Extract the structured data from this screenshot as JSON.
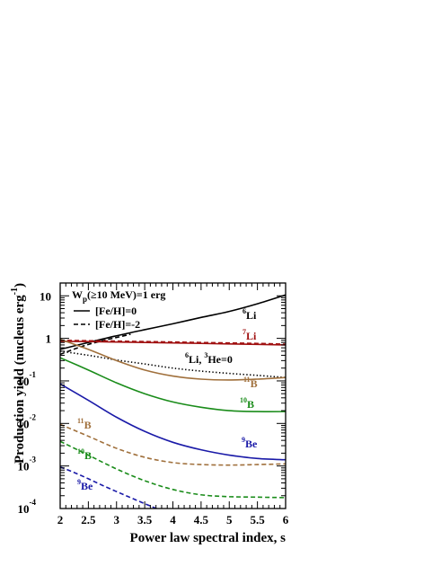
{
  "chart_data": {
    "type": "line",
    "title": "",
    "xlabel": "Power law spectral index, s",
    "ylabel": "Production yield (nucleus erg",
    "ylabel_sup": "-1",
    "ylabel_tail": ")",
    "xlim": [
      2,
      6
    ],
    "ylim": [
      0.0001,
      20
    ],
    "yscale": "log",
    "grid": false,
    "x_ticks": [
      "2",
      "2.5",
      "3",
      "3.5",
      "4",
      "4.5",
      "5",
      "5.5",
      "6"
    ],
    "y_ticks": [
      {
        "main": "10",
        "sup": "-4",
        "value": 0.0001
      },
      {
        "main": "10",
        "sup": "-3",
        "value": 0.001
      },
      {
        "main": "10",
        "sup": "-2",
        "value": 0.01
      },
      {
        "main": "10",
        "sup": "-1",
        "value": 0.1
      },
      {
        "main": "1",
        "sup": "",
        "value": 1
      },
      {
        "main": "10",
        "sup": "",
        "value": 10
      }
    ],
    "annotations": {
      "energy": {
        "prefix": "W",
        "sub": "p",
        "rest": "(≥10 MeV)=1 erg"
      },
      "legend_solid": "[Fe/H]=0",
      "legend_dashed": "[Fe/H]=-2"
    },
    "series": [
      {
        "id": "li6-solid",
        "color": "#000000",
        "style": "solid",
        "label": {
          "sup": "6",
          "text": "Li"
        },
        "x": [
          2,
          2.5,
          3,
          3.5,
          4,
          4.5,
          5,
          5.5,
          6
        ],
        "y": [
          0.55,
          0.8,
          1.15,
          1.6,
          2.2,
          3.1,
          4.3,
          6.5,
          10.5
        ]
      },
      {
        "id": "li6-dashed",
        "color": "#000000",
        "style": "dashed",
        "x": [
          2,
          2.25,
          2.5,
          2.75,
          3,
          3.25
        ],
        "y": [
          0.42,
          0.56,
          0.72,
          0.88,
          1.05,
          1.25
        ]
      },
      {
        "id": "li7-solid",
        "color": "#a01010",
        "style": "solid",
        "label": {
          "sup": "7",
          "text": "Li"
        },
        "x": [
          2,
          2.5,
          3,
          3.5,
          4,
          4.5,
          5,
          5.5,
          6
        ],
        "y": [
          0.85,
          0.84,
          0.82,
          0.8,
          0.78,
          0.76,
          0.74,
          0.72,
          0.7
        ]
      },
      {
        "id": "li7-dashed",
        "color": "#a01010",
        "style": "dashed",
        "x": [
          2,
          2.5,
          3,
          3.5,
          4,
          4.5,
          5,
          5.5,
          6
        ],
        "y": [
          0.9,
          0.88,
          0.86,
          0.84,
          0.82,
          0.8,
          0.78,
          0.76,
          0.73
        ]
      },
      {
        "id": "li6-he3-dotted",
        "color": "#000000",
        "style": "dotted",
        "label": {
          "sup": "6",
          "text": "Li, ",
          "sup2": "3",
          "text2": "He=0"
        },
        "x": [
          2,
          2.5,
          3,
          3.5,
          4,
          4.5,
          5,
          5.5,
          6
        ],
        "y": [
          0.5,
          0.4,
          0.31,
          0.25,
          0.2,
          0.17,
          0.15,
          0.135,
          0.12
        ]
      },
      {
        "id": "b11-solid",
        "color": "#a0703c",
        "style": "solid",
        "label": {
          "sup": "11",
          "text": "B"
        },
        "x": [
          2,
          2.5,
          3,
          3.5,
          4,
          4.5,
          5,
          5.5,
          6
        ],
        "y": [
          0.95,
          0.55,
          0.3,
          0.18,
          0.13,
          0.11,
          0.105,
          0.11,
          0.12
        ]
      },
      {
        "id": "b10-solid",
        "color": "#1a8c1a",
        "style": "solid",
        "label": {
          "sup": "10",
          "text": "B"
        },
        "x": [
          2,
          2.5,
          3,
          3.5,
          4,
          4.5,
          5,
          5.5,
          6
        ],
        "y": [
          0.35,
          0.18,
          0.09,
          0.05,
          0.032,
          0.024,
          0.02,
          0.019,
          0.019
        ]
      },
      {
        "id": "be9-solid",
        "color": "#1a1aa8",
        "style": "solid",
        "label": {
          "sup": "9",
          "text": "Be"
        },
        "x": [
          2,
          2.5,
          3,
          3.5,
          4,
          4.5,
          5,
          5.5,
          6
        ],
        "y": [
          0.085,
          0.035,
          0.014,
          0.0065,
          0.0036,
          0.0024,
          0.0018,
          0.0015,
          0.0014
        ]
      },
      {
        "id": "b11-dashed",
        "color": "#a0703c",
        "style": "dashed",
        "label": {
          "sup": "11",
          "text": "B"
        },
        "x": [
          2,
          2.5,
          3,
          3.5,
          4,
          4.5,
          5,
          5.5,
          6
        ],
        "y": [
          0.0095,
          0.005,
          0.0026,
          0.0016,
          0.0012,
          0.00108,
          0.00105,
          0.00108,
          0.00112
        ]
      },
      {
        "id": "b10-dashed",
        "color": "#1a8c1a",
        "style": "dashed",
        "label": {
          "sup": "10",
          "text": "B"
        },
        "x": [
          2,
          2.5,
          3,
          3.5,
          4,
          4.5,
          5,
          5.5,
          6
        ],
        "y": [
          0.0038,
          0.0018,
          0.00085,
          0.00045,
          0.00028,
          0.00021,
          0.00019,
          0.000185,
          0.00018
        ]
      },
      {
        "id": "be9-dashed",
        "color": "#1a1aa8",
        "style": "dashed",
        "label": {
          "sup": "9",
          "text": "Be"
        },
        "x": [
          2,
          2.25,
          2.5,
          2.75,
          3,
          3.25,
          3.5,
          3.75
        ],
        "y": [
          0.00095,
          0.0007,
          0.0005,
          0.00035,
          0.00025,
          0.00018,
          0.00013,
          9.5e-05
        ]
      }
    ]
  }
}
